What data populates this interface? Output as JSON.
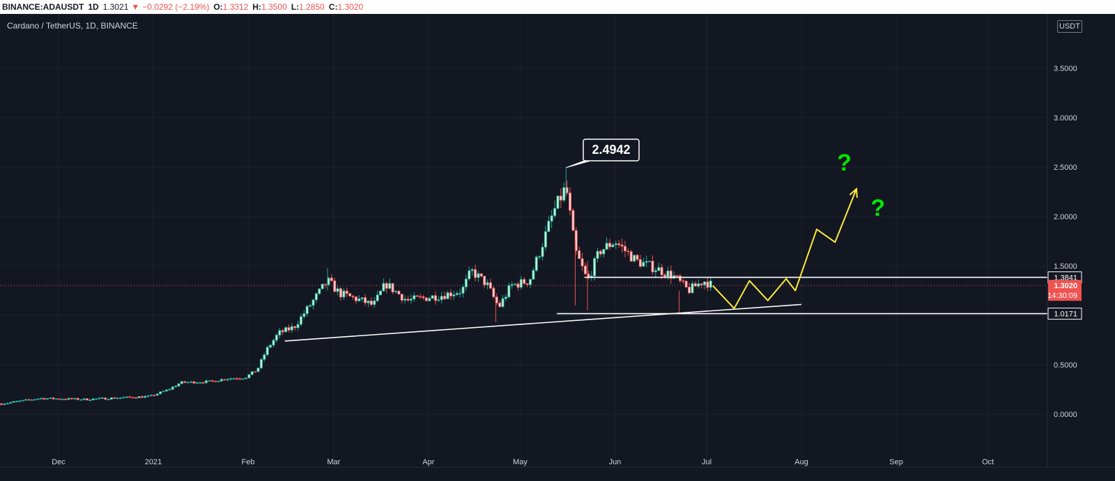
{
  "header": {
    "symbol": "BINANCE:ADAUSDT",
    "timeframe": "1D",
    "last_price": "1.3021",
    "change_arrow": "▼",
    "change": "−0.0292 (−2.19%)",
    "open_label": "O:",
    "open_value": "1.3312",
    "high_label": "H:",
    "high_value": "1.3500",
    "low_label": "L:",
    "low_value": "1.2850",
    "close_label": "C:",
    "close_value": "1.3020"
  },
  "chart_title": "Cardano / TetherUS, 1D, BINANCE",
  "currency": "USDT",
  "colors": {
    "background": "#131722",
    "grid": "#1e222d",
    "up": "#26a69a",
    "up_body": "#b9f6ca",
    "down": "#ef5350",
    "down_body": "#ffcdd2",
    "axis_text": "#d1d4dc",
    "projection": "#ffeb3b",
    "question": "#00e600",
    "white_line": "#ffffff"
  },
  "chart_data": {
    "type": "candlestick",
    "x_axis": {
      "ticks": [
        {
          "label": "Dec",
          "date": "2020-12-01"
        },
        {
          "label": "2021",
          "date": "2021-01-01"
        },
        {
          "label": "Feb",
          "date": "2021-02-01"
        },
        {
          "label": "Mar",
          "date": "2021-03-01"
        },
        {
          "label": "Apr",
          "date": "2021-04-01"
        },
        {
          "label": "May",
          "date": "2021-05-01"
        },
        {
          "label": "Jun",
          "date": "2021-06-01"
        },
        {
          "label": "Jul",
          "date": "2021-07-01"
        },
        {
          "label": "Aug",
          "date": "2021-08-01"
        },
        {
          "label": "Sep",
          "date": "2021-09-01"
        },
        {
          "label": "Oct",
          "date": "2021-10-01"
        }
      ]
    },
    "y_axis": {
      "ticks": [
        "0.0000",
        "0.5000",
        "1.0000",
        "1.5000",
        "2.0000",
        "2.5000",
        "3.0000",
        "3.5000"
      ],
      "range": [
        -0.4,
        4.0
      ]
    },
    "path": [
      [
        "2020-11-11",
        0.1
      ],
      [
        "2020-11-25",
        0.16
      ],
      [
        "2020-12-10",
        0.15
      ],
      [
        "2020-12-31",
        0.18
      ],
      [
        "2021-01-06",
        0.25
      ],
      [
        "2021-01-10",
        0.32
      ],
      [
        "2021-01-20",
        0.33
      ],
      [
        "2021-01-25",
        0.36
      ],
      [
        "2021-01-31",
        0.37
      ],
      [
        "2021-02-04",
        0.45
      ],
      [
        "2021-02-07",
        0.65
      ],
      [
        "2021-02-11",
        0.82
      ],
      [
        "2021-02-16",
        0.88
      ],
      [
        "2021-02-20",
        1.05
      ],
      [
        "2021-02-27",
        1.35
      ],
      [
        "2021-03-03",
        1.22
      ],
      [
        "2021-03-10",
        1.15
      ],
      [
        "2021-03-14",
        1.1
      ],
      [
        "2021-03-18",
        1.32
      ],
      [
        "2021-03-25",
        1.15
      ],
      [
        "2021-04-05",
        1.2
      ],
      [
        "2021-04-12",
        1.25
      ],
      [
        "2021-04-15",
        1.45
      ],
      [
        "2021-04-20",
        1.32
      ],
      [
        "2021-04-24",
        1.08
      ],
      [
        "2021-04-28",
        1.3
      ],
      [
        "2021-05-04",
        1.35
      ],
      [
        "2021-05-08",
        1.7
      ],
      [
        "2021-05-12",
        2.05
      ],
      [
        "2021-05-16",
        2.3
      ],
      [
        "2021-05-19",
        1.65
      ],
      [
        "2021-05-23",
        1.35
      ],
      [
        "2021-05-27",
        1.65
      ],
      [
        "2021-06-01",
        1.75
      ],
      [
        "2021-06-08",
        1.55
      ],
      [
        "2021-06-14",
        1.48
      ],
      [
        "2021-06-20",
        1.4
      ],
      [
        "2021-06-25",
        1.25
      ],
      [
        "2021-06-30",
        1.35
      ],
      [
        "2021-07-03",
        1.3
      ]
    ],
    "annotations": {
      "peak_label": "2.4942",
      "peak": {
        "date": "2021-05-16",
        "value": 2.4942
      },
      "resistance": {
        "label": "1.3841",
        "value": 1.3841,
        "from": "2021-05-22",
        "to": "2021-10-31"
      },
      "support": {
        "label": "1.0171",
        "value": 1.0171,
        "from": "2021-05-13",
        "to": "2021-10-31"
      },
      "trendline": [
        {
          "date": "2021-02-13",
          "value": 0.74
        },
        {
          "date": "2021-08-01",
          "value": 1.11
        }
      ],
      "current_price": {
        "label": "1.3020",
        "value": 1.302,
        "countdown": "14:30:09"
      },
      "projection": [
        [
          "2021-07-03",
          1.3
        ],
        [
          "2021-07-10",
          1.07
        ],
        [
          "2021-07-15",
          1.35
        ],
        [
          "2021-07-21",
          1.15
        ],
        [
          "2021-07-27",
          1.37
        ],
        [
          "2021-07-30",
          1.25
        ],
        [
          "2021-08-06",
          1.87
        ],
        [
          "2021-08-12",
          1.74
        ],
        [
          "2021-08-19",
          2.28
        ]
      ],
      "question_marks": [
        {
          "text": "?",
          "date": "2021-08-15",
          "value": 2.55
        },
        {
          "text": "?",
          "date": "2021-08-26",
          "value": 2.09
        }
      ]
    }
  }
}
